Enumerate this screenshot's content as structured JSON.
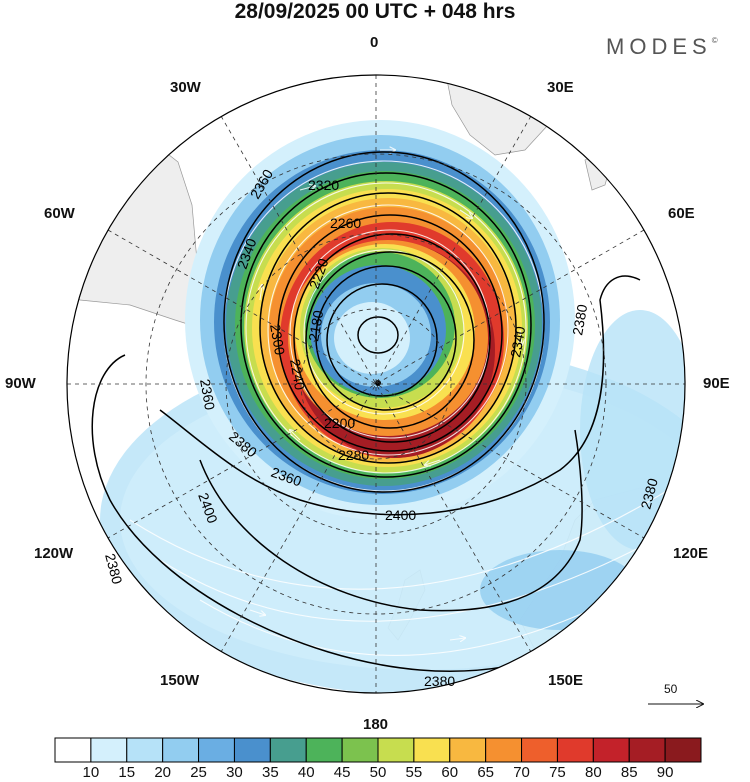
{
  "title": "28/09/2025  00 UTC  + 048 hrs",
  "brand": {
    "name": "MODES",
    "mark": "©"
  },
  "map": {
    "projection": "polar stereographic, South Pole",
    "longitude_labels": {
      "top": "0",
      "top_right": "30E",
      "right_upper": "60E",
      "right": "90E",
      "right_lower": "120E",
      "bottom_right": "150E",
      "bottom": "180",
      "bottom_left": "150W",
      "left_lower": "120W",
      "left": "90W",
      "left_upper": "60W",
      "top_left": "30W"
    },
    "contour_labels": [
      "2360",
      "2320",
      "2340",
      "2260",
      "2220",
      "2380",
      "2360",
      "2180",
      "2300",
      "2240",
      "2380",
      "2200",
      "2280",
      "2360",
      "2400",
      "2340",
      "2380",
      "2400",
      "2380",
      "2380"
    ],
    "wind_reference": {
      "value": "50"
    }
  },
  "colorbar": {
    "ticks": [
      "10",
      "15",
      "20",
      "25",
      "30",
      "35",
      "40",
      "45",
      "50",
      "55",
      "60",
      "65",
      "70",
      "75",
      "80",
      "85",
      "90"
    ],
    "colors": [
      "#ffffff",
      "#d4f0fc",
      "#b6e2f8",
      "#92cdf0",
      "#6aaee3",
      "#4a90cd",
      "#479e8f",
      "#4db35a",
      "#7cc24e",
      "#c7dd4f",
      "#f9e050",
      "#f8b840",
      "#f59030",
      "#ee5f2c",
      "#e03a2c",
      "#c3222a",
      "#a51d24",
      "#8a1a1e"
    ]
  }
}
